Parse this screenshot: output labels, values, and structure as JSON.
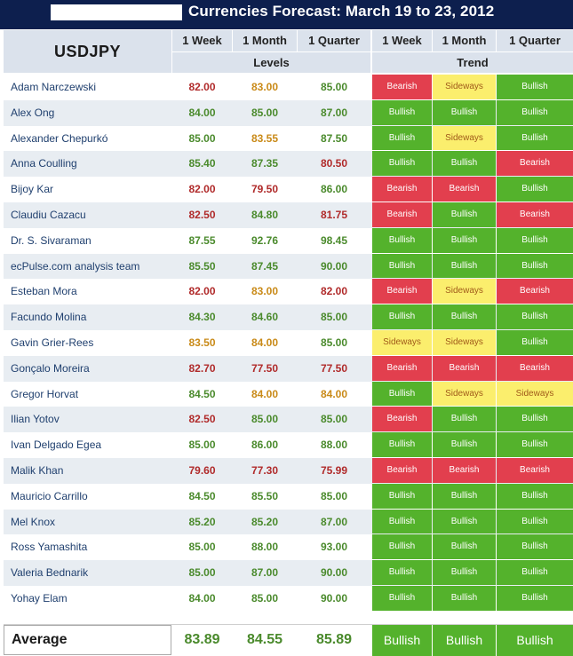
{
  "title": "Currencies Forecast: March 19 to 23, 2012",
  "pair": "USDJPY",
  "headers": {
    "week": "1 Week",
    "month": "1 Month",
    "quarter": "1 Quarter",
    "levels": "Levels",
    "trend": "Trend"
  },
  "colors": {
    "title_bar": "#0d1f4e",
    "bearish": "#e23f4e",
    "bullish": "#54b22c",
    "sideways": "#fbee6d"
  },
  "rows": [
    {
      "name": "Adam Narczewski",
      "levels": [
        "82.00",
        "83.00",
        "85.00"
      ],
      "level_colors": [
        "red",
        "orange",
        "green"
      ],
      "trend": [
        "Bearish",
        "Sideways",
        "Bullish"
      ]
    },
    {
      "name": "Alex Ong",
      "levels": [
        "84.00",
        "85.00",
        "87.00"
      ],
      "level_colors": [
        "green",
        "green",
        "green"
      ],
      "trend": [
        "Bullish",
        "Bullish",
        "Bullish"
      ]
    },
    {
      "name": "Alexander Chepurkó",
      "levels": [
        "85.00",
        "83.55",
        "87.50"
      ],
      "level_colors": [
        "green",
        "orange",
        "green"
      ],
      "trend": [
        "Bullish",
        "Sideways",
        "Bullish"
      ]
    },
    {
      "name": "Anna Coulling",
      "levels": [
        "85.40",
        "87.35",
        "80.50"
      ],
      "level_colors": [
        "green",
        "green",
        "red"
      ],
      "trend": [
        "Bullish",
        "Bullish",
        "Bearish"
      ]
    },
    {
      "name": "Bijoy Kar",
      "levels": [
        "82.00",
        "79.50",
        "86.00"
      ],
      "level_colors": [
        "red",
        "red",
        "green"
      ],
      "trend": [
        "Bearish",
        "Bearish",
        "Bullish"
      ]
    },
    {
      "name": "Claudiu Cazacu",
      "levels": [
        "82.50",
        "84.80",
        "81.75"
      ],
      "level_colors": [
        "red",
        "green",
        "red"
      ],
      "trend": [
        "Bearish",
        "Bullish",
        "Bearish"
      ]
    },
    {
      "name": "Dr. S. Sivaraman",
      "levels": [
        "87.55",
        "92.76",
        "98.45"
      ],
      "level_colors": [
        "green",
        "green",
        "green"
      ],
      "trend": [
        "Bullish",
        "Bullish",
        "Bullish"
      ]
    },
    {
      "name": "ecPulse.com analysis team",
      "levels": [
        "85.50",
        "87.45",
        "90.00"
      ],
      "level_colors": [
        "green",
        "green",
        "green"
      ],
      "trend": [
        "Bullish",
        "Bullish",
        "Bullish"
      ]
    },
    {
      "name": "Esteban Mora",
      "levels": [
        "82.00",
        "83.00",
        "82.00"
      ],
      "level_colors": [
        "red",
        "orange",
        "red"
      ],
      "trend": [
        "Bearish",
        "Sideways",
        "Bearish"
      ]
    },
    {
      "name": "Facundo Molina",
      "levels": [
        "84.30",
        "84.60",
        "85.00"
      ],
      "level_colors": [
        "green",
        "green",
        "green"
      ],
      "trend": [
        "Bullish",
        "Bullish",
        "Bullish"
      ]
    },
    {
      "name": "Gavin Grier-Rees",
      "levels": [
        "83.50",
        "84.00",
        "85.00"
      ],
      "level_colors": [
        "orange",
        "orange",
        "green"
      ],
      "trend": [
        "Sideways",
        "Sideways",
        "Bullish"
      ]
    },
    {
      "name": "Gonçalo Moreira",
      "levels": [
        "82.70",
        "77.50",
        "77.50"
      ],
      "level_colors": [
        "red",
        "red",
        "red"
      ],
      "trend": [
        "Bearish",
        "Bearish",
        "Bearish"
      ]
    },
    {
      "name": "Gregor Horvat",
      "levels": [
        "84.50",
        "84.00",
        "84.00"
      ],
      "level_colors": [
        "green",
        "orange",
        "orange"
      ],
      "trend": [
        "Bullish",
        "Sideways",
        "Sideways"
      ]
    },
    {
      "name": "Ilian Yotov",
      "levels": [
        "82.50",
        "85.00",
        "85.00"
      ],
      "level_colors": [
        "red",
        "green",
        "green"
      ],
      "trend": [
        "Bearish",
        "Bullish",
        "Bullish"
      ]
    },
    {
      "name": "Ivan Delgado Egea",
      "levels": [
        "85.00",
        "86.00",
        "88.00"
      ],
      "level_colors": [
        "green",
        "green",
        "green"
      ],
      "trend": [
        "Bullish",
        "Bullish",
        "Bullish"
      ]
    },
    {
      "name": "Malik Khan",
      "levels": [
        "79.60",
        "77.30",
        "75.99"
      ],
      "level_colors": [
        "red",
        "red",
        "red"
      ],
      "trend": [
        "Bearish",
        "Bearish",
        "Bearish"
      ]
    },
    {
      "name": "Mauricio Carrillo",
      "levels": [
        "84.50",
        "85.50",
        "85.00"
      ],
      "level_colors": [
        "green",
        "green",
        "green"
      ],
      "trend": [
        "Bullish",
        "Bullish",
        "Bullish"
      ]
    },
    {
      "name": "Mel Knox",
      "levels": [
        "85.20",
        "85.20",
        "87.00"
      ],
      "level_colors": [
        "green",
        "green",
        "green"
      ],
      "trend": [
        "Bullish",
        "Bullish",
        "Bullish"
      ]
    },
    {
      "name": "Ross Yamashita",
      "levels": [
        "85.00",
        "88.00",
        "93.00"
      ],
      "level_colors": [
        "green",
        "green",
        "green"
      ],
      "trend": [
        "Bullish",
        "Bullish",
        "Bullish"
      ]
    },
    {
      "name": "Valeria Bednarik",
      "levels": [
        "85.00",
        "87.00",
        "90.00"
      ],
      "level_colors": [
        "green",
        "green",
        "green"
      ],
      "trend": [
        "Bullish",
        "Bullish",
        "Bullish"
      ]
    },
    {
      "name": "Yohay Elam",
      "levels": [
        "84.00",
        "85.00",
        "90.00"
      ],
      "level_colors": [
        "green",
        "green",
        "green"
      ],
      "trend": [
        "Bullish",
        "Bullish",
        "Bullish"
      ]
    }
  ],
  "average": {
    "label": "Average",
    "levels": [
      "83.89",
      "84.55",
      "85.89"
    ],
    "trend": [
      "Bullish",
      "Bullish",
      "Bullish"
    ]
  }
}
